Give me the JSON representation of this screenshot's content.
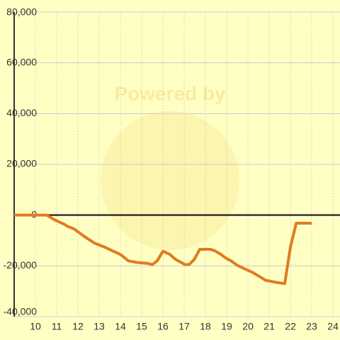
{
  "chart_data": {
    "type": "line",
    "watermark": "Powered by",
    "x": [
      9,
      10.53,
      10.93,
      11.33,
      11.53,
      11.83,
      12.23,
      12.77,
      13.23,
      13.6,
      14,
      14.37,
      14.8,
      15.27,
      15.5,
      15.73,
      16,
      16.33,
      16.6,
      16.83,
      17.03,
      17.23,
      17.47,
      17.73,
      18.23,
      18.43,
      18.73,
      18.97,
      19.2,
      19.5,
      19.8,
      20.2,
      20.6,
      20.83,
      21.33,
      21.73,
      22,
      22.27,
      23
    ],
    "series": [
      {
        "color": "#e07b20",
        "values": [
          0,
          0,
          -2000,
          -3500,
          -4500,
          -5500,
          -8000,
          -11000,
          -12500,
          -14000,
          -15500,
          -18000,
          -18700,
          -19000,
          -19500,
          -18000,
          -14200,
          -15500,
          -17500,
          -18500,
          -19500,
          -19500,
          -17500,
          -13500,
          -13500,
          -14000,
          -15500,
          -17000,
          -18000,
          -19800,
          -21000,
          -22500,
          -24500,
          -25700,
          -26500,
          -27000,
          -12500,
          -3200,
          -3200
        ]
      }
    ],
    "xlim": [
      9,
      24.33
    ],
    "xticks": [
      10,
      11,
      12,
      13,
      14,
      15,
      16,
      17,
      18,
      19,
      20,
      21,
      22,
      23,
      24
    ],
    "ylim": [
      -40000,
      80000
    ],
    "yticks": [
      {
        "value": -40000,
        "label": "-40,000"
      },
      {
        "value": -20000,
        "label": "-20,000"
      },
      0,
      {
        "value": 20000,
        "label": "20,000"
      },
      {
        "value": 40000,
        "label": "40,000"
      },
      {
        "value": 60000,
        "label": "60,000"
      },
      {
        "value": 80000,
        "label": "80,000"
      }
    ],
    "grid": true
  }
}
